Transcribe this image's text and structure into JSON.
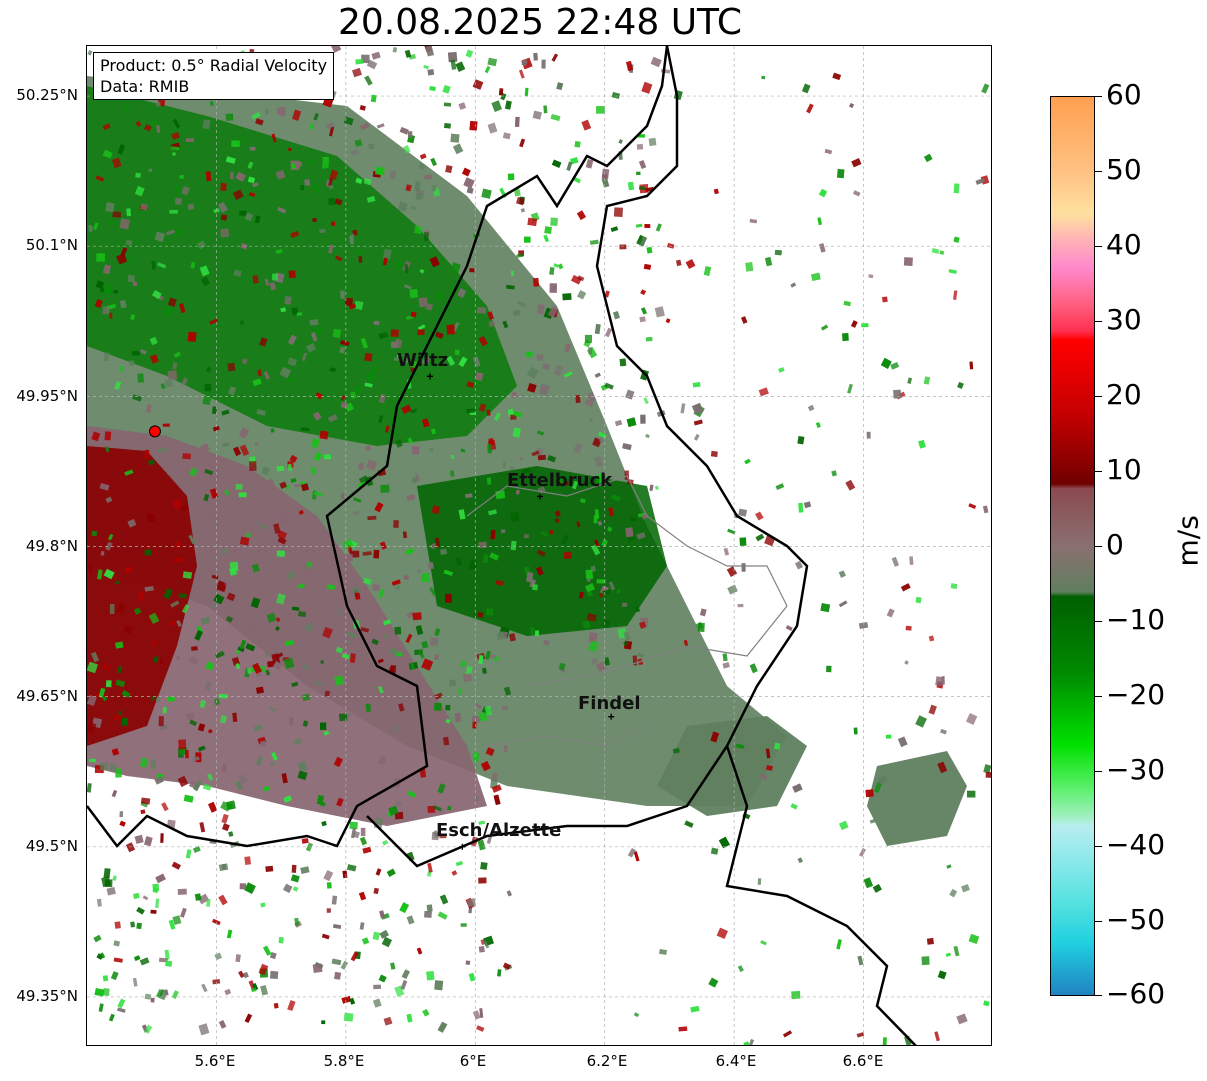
{
  "title": "20.08.2025 22:48 UTC",
  "info": {
    "product": "Product: 0.5° Radial Velocity",
    "data": "Data: RMIB"
  },
  "axes": {
    "lat_ticks": [
      "50.25°N",
      "50.1°N",
      "49.95°N",
      "49.8°N",
      "49.65°N",
      "49.5°N",
      "49.35°N"
    ],
    "lon_ticks": [
      "5.6°E",
      "5.8°E",
      "6°E",
      "6.2°E",
      "6.4°E",
      "6.6°E"
    ],
    "lat_values": [
      50.25,
      50.1,
      49.95,
      49.8,
      49.65,
      49.5,
      49.35
    ],
    "lon_values": [
      5.6,
      5.8,
      6.0,
      6.2,
      6.4,
      6.6
    ],
    "lon_range": [
      5.4,
      6.8
    ],
    "lat_range": [
      49.3,
      50.3
    ],
    "grid": true
  },
  "cities": [
    {
      "name": "Wiltz",
      "lon": 5.93,
      "lat": 49.97
    },
    {
      "name": "Ettelbruck",
      "lon": 6.1,
      "lat": 49.85
    },
    {
      "name": "Findel",
      "lon": 6.21,
      "lat": 49.63
    },
    {
      "name": "Esch/Alzette",
      "lon": 5.98,
      "lat": 49.5
    }
  ],
  "radar_site": {
    "lon": 5.505,
    "lat": 49.915,
    "color": "#ff0000"
  },
  "colorbar": {
    "label": "m/s",
    "min": -60,
    "max": 60,
    "ticks": [
      "60",
      "50",
      "40",
      "30",
      "20",
      "10",
      "0",
      "−10",
      "−20",
      "−30",
      "−40",
      "−50",
      "−60"
    ],
    "tick_values": [
      60,
      50,
      40,
      30,
      20,
      10,
      0,
      -10,
      -20,
      -30,
      -40,
      -50,
      -60
    ]
  },
  "colors": {
    "border": "#000000",
    "admin": "#808080",
    "grid": "#b0b0b0",
    "approaching_dark": "#006400",
    "approaching": "#00b000",
    "near_zero_green": "#5f7f5f",
    "near_zero_red": "#876570",
    "receding_dark": "#8b0000"
  }
}
